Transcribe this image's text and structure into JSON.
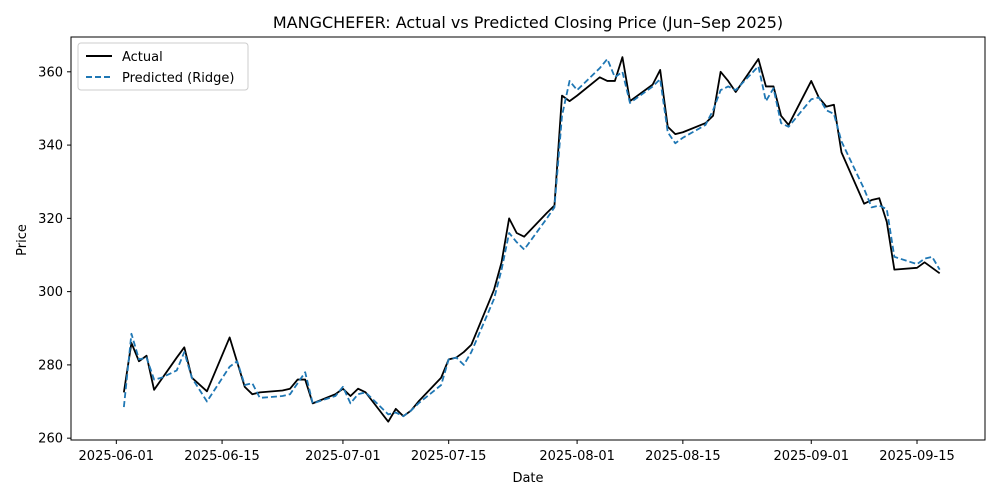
{
  "chart_data": {
    "type": "line",
    "title": "MANGCHEFER: Actual vs Predicted Closing Price (Jun–Sep 2025)",
    "xlabel": "Date",
    "ylabel": "Price",
    "xlim": [
      "2025-05-26",
      "2025-09-24"
    ],
    "ylim": [
      259.5,
      369.5
    ],
    "x_ticks": [
      "2025-06-01",
      "2025-06-15",
      "2025-07-01",
      "2025-07-15",
      "2025-08-01",
      "2025-08-15",
      "2025-09-01",
      "2025-09-15"
    ],
    "y_ticks": [
      260,
      280,
      300,
      320,
      340,
      360
    ],
    "grid": false,
    "legend_position": "upper-left",
    "series": [
      {
        "name": "Actual",
        "color": "#000000",
        "style": "solid",
        "points": [
          [
            "2025-06-02",
            272.5
          ],
          [
            "2025-06-03",
            286.0
          ],
          [
            "2025-06-04",
            281.0
          ],
          [
            "2025-06-05",
            282.5
          ],
          [
            "2025-06-06",
            273.2
          ],
          [
            "2025-06-09",
            282.0
          ],
          [
            "2025-06-10",
            284.8
          ],
          [
            "2025-06-11",
            276.5
          ],
          [
            "2025-06-13",
            272.8
          ],
          [
            "2025-06-16",
            287.5
          ],
          [
            "2025-06-18",
            274.0
          ],
          [
            "2025-06-19",
            272.0
          ],
          [
            "2025-06-20",
            272.5
          ],
          [
            "2025-06-23",
            273.0
          ],
          [
            "2025-06-24",
            273.5
          ],
          [
            "2025-06-25",
            276.0
          ],
          [
            "2025-06-26",
            276.0
          ],
          [
            "2025-06-27",
            269.5
          ],
          [
            "2025-06-30",
            272.0
          ],
          [
            "2025-07-01",
            273.5
          ],
          [
            "2025-07-02",
            271.5
          ],
          [
            "2025-07-03",
            273.5
          ],
          [
            "2025-07-04",
            272.5
          ],
          [
            "2025-07-07",
            264.5
          ],
          [
            "2025-07-08",
            268.0
          ],
          [
            "2025-07-09",
            266.0
          ],
          [
            "2025-07-10",
            267.5
          ],
          [
            "2025-07-11",
            270.0
          ],
          [
            "2025-07-14",
            276.5
          ],
          [
            "2025-07-15",
            281.5
          ],
          [
            "2025-07-16",
            282.0
          ],
          [
            "2025-07-17",
            283.5
          ],
          [
            "2025-07-18",
            285.5
          ],
          [
            "2025-07-21",
            300.5
          ],
          [
            "2025-07-22",
            308.0
          ],
          [
            "2025-07-23",
            320.0
          ],
          [
            "2025-07-24",
            316.0
          ],
          [
            "2025-07-25",
            315.0
          ],
          [
            "2025-07-28",
            321.5
          ],
          [
            "2025-07-29",
            323.5
          ],
          [
            "2025-07-30",
            353.5
          ],
          [
            "2025-07-31",
            352.0
          ],
          [
            "2025-08-01",
            353.5
          ],
          [
            "2025-08-04",
            358.5
          ],
          [
            "2025-08-05",
            357.5
          ],
          [
            "2025-08-06",
            357.5
          ],
          [
            "2025-08-07",
            364.0
          ],
          [
            "2025-08-08",
            352.0
          ],
          [
            "2025-08-11",
            356.5
          ],
          [
            "2025-08-12",
            360.5
          ],
          [
            "2025-08-13",
            345.0
          ],
          [
            "2025-08-14",
            343.0
          ],
          [
            "2025-08-15",
            343.5
          ],
          [
            "2025-08-18",
            346.0
          ],
          [
            "2025-08-19",
            348.0
          ],
          [
            "2025-08-20",
            360.0
          ],
          [
            "2025-08-21",
            357.5
          ],
          [
            "2025-08-22",
            354.5
          ],
          [
            "2025-08-25",
            363.5
          ],
          [
            "2025-08-26",
            356.0
          ],
          [
            "2025-08-27",
            356.0
          ],
          [
            "2025-08-28",
            348.0
          ],
          [
            "2025-08-29",
            345.5
          ],
          [
            "2025-09-01",
            357.5
          ],
          [
            "2025-09-02",
            353.0
          ],
          [
            "2025-09-03",
            350.5
          ],
          [
            "2025-09-04",
            351.0
          ],
          [
            "2025-09-05",
            338.0
          ],
          [
            "2025-09-08",
            324.0
          ],
          [
            "2025-09-09",
            325.0
          ],
          [
            "2025-09-10",
            325.5
          ],
          [
            "2025-09-11",
            319.0
          ],
          [
            "2025-09-12",
            306.0
          ],
          [
            "2025-09-15",
            306.5
          ],
          [
            "2025-09-16",
            308.0
          ],
          [
            "2025-09-18",
            305.0
          ]
        ]
      },
      {
        "name": "Predicted (Ridge)",
        "color": "#1f77b4",
        "style": "dashed",
        "points": [
          [
            "2025-06-02",
            268.5
          ],
          [
            "2025-06-03",
            288.5
          ],
          [
            "2025-06-04",
            281.5
          ],
          [
            "2025-06-05",
            282.0
          ],
          [
            "2025-06-06",
            276.0
          ],
          [
            "2025-06-07",
            276.5
          ],
          [
            "2025-06-09",
            278.5
          ],
          [
            "2025-06-10",
            283.5
          ],
          [
            "2025-06-11",
            276.5
          ],
          [
            "2025-06-13",
            270.0
          ],
          [
            "2025-06-16",
            279.5
          ],
          [
            "2025-06-17",
            281.0
          ],
          [
            "2025-06-18",
            274.5
          ],
          [
            "2025-06-19",
            275.0
          ],
          [
            "2025-06-20",
            271.0
          ],
          [
            "2025-06-23",
            271.5
          ],
          [
            "2025-06-24",
            272.0
          ],
          [
            "2025-06-25",
            275.0
          ],
          [
            "2025-06-26",
            278.0
          ],
          [
            "2025-06-27",
            269.5
          ],
          [
            "2025-06-30",
            271.5
          ],
          [
            "2025-07-01",
            274.0
          ],
          [
            "2025-07-02",
            269.5
          ],
          [
            "2025-07-03",
            272.0
          ],
          [
            "2025-07-04",
            272.5
          ],
          [
            "2025-07-07",
            266.5
          ],
          [
            "2025-07-08",
            267.0
          ],
          [
            "2025-07-09",
            266.0
          ],
          [
            "2025-07-10",
            267.5
          ],
          [
            "2025-07-11",
            269.5
          ],
          [
            "2025-07-14",
            274.5
          ],
          [
            "2025-07-15",
            281.5
          ],
          [
            "2025-07-16",
            282.0
          ],
          [
            "2025-07-17",
            280.0
          ],
          [
            "2025-07-18",
            283.5
          ],
          [
            "2025-07-21",
            298.0
          ],
          [
            "2025-07-22",
            306.0
          ],
          [
            "2025-07-23",
            316.0
          ],
          [
            "2025-07-24",
            313.5
          ],
          [
            "2025-07-25",
            311.5
          ],
          [
            "2025-07-28",
            320.0
          ],
          [
            "2025-07-29",
            323.0
          ],
          [
            "2025-07-30",
            348.0
          ],
          [
            "2025-07-31",
            357.5
          ],
          [
            "2025-08-01",
            355.0
          ],
          [
            "2025-08-04",
            361.0
          ],
          [
            "2025-08-05",
            363.5
          ],
          [
            "2025-08-06",
            358.5
          ],
          [
            "2025-08-07",
            360.0
          ],
          [
            "2025-08-08",
            351.5
          ],
          [
            "2025-08-11",
            356.0
          ],
          [
            "2025-08-12",
            358.0
          ],
          [
            "2025-08-13",
            343.5
          ],
          [
            "2025-08-14",
            340.5
          ],
          [
            "2025-08-15",
            342.0
          ],
          [
            "2025-08-18",
            345.5
          ],
          [
            "2025-08-19",
            349.5
          ],
          [
            "2025-08-20",
            355.0
          ],
          [
            "2025-08-21",
            356.0
          ],
          [
            "2025-08-22",
            355.0
          ],
          [
            "2025-08-25",
            361.5
          ],
          [
            "2025-08-26",
            352.0
          ],
          [
            "2025-08-27",
            355.5
          ],
          [
            "2025-08-28",
            346.0
          ],
          [
            "2025-08-29",
            345.0
          ],
          [
            "2025-09-01",
            352.5
          ],
          [
            "2025-09-02",
            353.0
          ],
          [
            "2025-09-03",
            349.5
          ],
          [
            "2025-09-04",
            348.5
          ],
          [
            "2025-09-05",
            341.0
          ],
          [
            "2025-09-08",
            328.0
          ],
          [
            "2025-09-09",
            323.0
          ],
          [
            "2025-09-10",
            323.5
          ],
          [
            "2025-09-11",
            322.5
          ],
          [
            "2025-09-12",
            309.5
          ],
          [
            "2025-09-15",
            307.5
          ],
          [
            "2025-09-16",
            309.0
          ],
          [
            "2025-09-17",
            309.5
          ],
          [
            "2025-09-18",
            306.0
          ]
        ]
      }
    ]
  }
}
